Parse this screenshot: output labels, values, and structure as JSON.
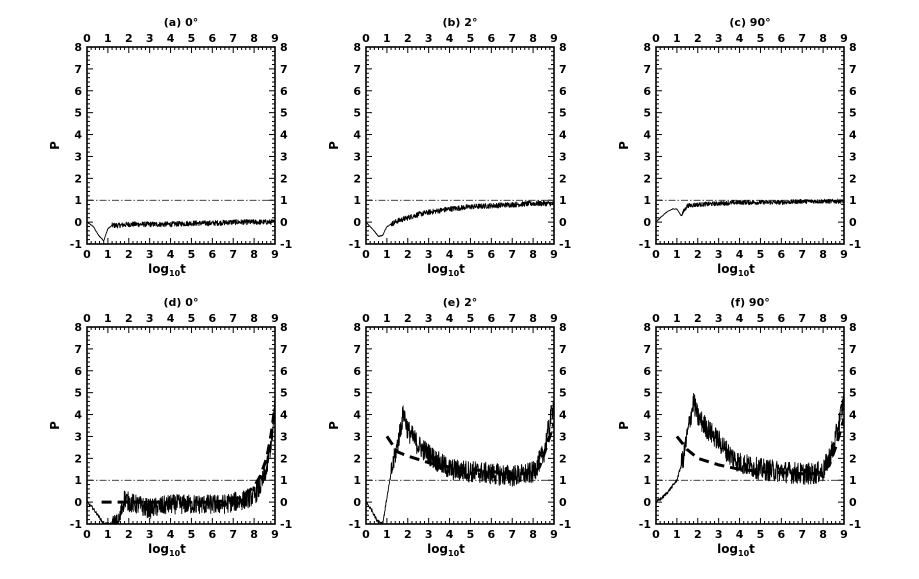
{
  "chart_data": [
    {
      "type": "line",
      "title": "(a) 0°",
      "xlabel": "log10t",
      "ylabel": "P",
      "xlim": [
        0,
        9
      ],
      "ylim": [
        -1,
        8
      ],
      "xticks": [
        "0",
        "1",
        "2",
        "3",
        "4",
        "5",
        "6",
        "7",
        "8",
        "9"
      ],
      "yticks": [
        "-1",
        "0",
        "1",
        "2",
        "3",
        "4",
        "5",
        "6",
        "7",
        "8"
      ],
      "reference_line": 1,
      "series": [
        {
          "style": "solid",
          "x": [
            0,
            0.3,
            0.55,
            0.8,
            1.0,
            1.2,
            1.5,
            2,
            3,
            4,
            5,
            6,
            7,
            8,
            9
          ],
          "y": [
            0,
            -0.2,
            -0.6,
            -0.85,
            -0.3,
            -0.15,
            -0.15,
            -0.1,
            -0.1,
            -0.1,
            -0.05,
            -0.05,
            0,
            0,
            0
          ]
        }
      ]
    },
    {
      "type": "line",
      "title": "(b) 2°",
      "xlabel": "log10t",
      "ylabel": "P",
      "xlim": [
        0,
        9
      ],
      "ylim": [
        -1,
        8
      ],
      "xticks": [
        "0",
        "1",
        "2",
        "3",
        "4",
        "5",
        "6",
        "7",
        "8",
        "9"
      ],
      "yticks": [
        "-1",
        "0",
        "1",
        "2",
        "3",
        "4",
        "5",
        "6",
        "7",
        "8"
      ],
      "reference_line": 1,
      "series": [
        {
          "style": "solid",
          "x": [
            0,
            0.3,
            0.6,
            0.8,
            1.0,
            1.2,
            1.5,
            2,
            2.5,
            3,
            4,
            5,
            6,
            7,
            8,
            9
          ],
          "y": [
            0,
            -0.3,
            -0.65,
            -0.6,
            -0.2,
            -0.1,
            0.05,
            0.2,
            0.35,
            0.45,
            0.6,
            0.7,
            0.75,
            0.8,
            0.85,
            0.85
          ]
        }
      ]
    },
    {
      "type": "line",
      "title": "(c) 90°",
      "xlabel": "log10t",
      "ylabel": "P",
      "xlim": [
        0,
        9
      ],
      "ylim": [
        -1,
        8
      ],
      "xticks": [
        "0",
        "1",
        "2",
        "3",
        "4",
        "5",
        "6",
        "7",
        "8",
        "9"
      ],
      "yticks": [
        "-1",
        "0",
        "1",
        "2",
        "3",
        "4",
        "5",
        "6",
        "7",
        "8"
      ],
      "reference_line": 1,
      "series": [
        {
          "style": "solid",
          "x": [
            0,
            0.2,
            0.5,
            0.8,
            1.0,
            1.2,
            1.5,
            2,
            3,
            4,
            5,
            6,
            7,
            8,
            9
          ],
          "y": [
            0,
            0.2,
            0.45,
            0.6,
            0.6,
            0.3,
            0.75,
            0.8,
            0.85,
            0.9,
            0.9,
            0.9,
            0.95,
            0.95,
            0.95
          ]
        }
      ]
    },
    {
      "type": "line",
      "title": "(d) 0°",
      "xlabel": "log10t",
      "ylabel": "P",
      "xlim": [
        0,
        9
      ],
      "ylim": [
        -1,
        8
      ],
      "xticks": [
        "0",
        "1",
        "2",
        "3",
        "4",
        "5",
        "6",
        "7",
        "8",
        "9"
      ],
      "yticks": [
        "-1",
        "0",
        "1",
        "2",
        "3",
        "4",
        "5",
        "6",
        "7",
        "8"
      ],
      "reference_line": 1,
      "series": [
        {
          "style": "solid",
          "x": [
            0,
            0.3,
            0.6,
            0.8,
            1.0,
            1.5,
            1.8,
            2,
            3,
            4,
            5,
            6,
            6.5,
            7,
            7.5,
            8,
            8.3,
            8.6,
            8.9,
            9
          ],
          "y": [
            0,
            -0.3,
            -0.7,
            -1,
            -1,
            -1,
            0.2,
            0,
            -0.3,
            -0.1,
            -0.1,
            -0.1,
            -0.1,
            0,
            0.1,
            0.3,
            0.7,
            1.5,
            3.2,
            4.6
          ]
        },
        {
          "style": "dashed",
          "x": [
            0.7,
            1.2,
            2,
            3,
            4,
            5,
            6,
            7,
            7.5,
            8,
            8.3,
            8.6,
            8.8,
            9
          ],
          "y": [
            0,
            0,
            0,
            0,
            0,
            0,
            0,
            0.1,
            0.3,
            0.7,
            1.2,
            2,
            3,
            4.4
          ]
        }
      ]
    },
    {
      "type": "line",
      "title": "(e) 2°",
      "xlabel": "log10t",
      "ylabel": "P",
      "xlim": [
        0,
        9
      ],
      "ylim": [
        -1,
        8
      ],
      "xticks": [
        "0",
        "1",
        "2",
        "3",
        "4",
        "5",
        "6",
        "7",
        "8",
        "9"
      ],
      "yticks": [
        "-1",
        "0",
        "1",
        "2",
        "3",
        "4",
        "5",
        "6",
        "7",
        "8"
      ],
      "reference_line": 1,
      "series": [
        {
          "style": "solid",
          "x": [
            0,
            0.3,
            0.5,
            0.8,
            1.0,
            1.2,
            1.5,
            1.8,
            2,
            2.5,
            3,
            3.5,
            4,
            5,
            6,
            7,
            7.5,
            8,
            8.5,
            9
          ],
          "y": [
            0,
            -0.4,
            -0.8,
            -1,
            0.2,
            1.3,
            2.6,
            4.1,
            3.3,
            2.6,
            2.2,
            1.8,
            1.5,
            1.4,
            1.3,
            1.2,
            1.25,
            1.35,
            2.2,
            4.6
          ]
        },
        {
          "style": "dashed",
          "x": [
            1,
            1.5,
            2,
            3,
            4,
            5,
            6,
            7,
            7.5,
            8,
            8.3,
            8.6,
            9
          ],
          "y": [
            3,
            2.3,
            2.1,
            1.8,
            1.6,
            1.5,
            1.4,
            1.3,
            1.3,
            1.35,
            1.6,
            2.4,
            3.6
          ]
        }
      ]
    },
    {
      "type": "line",
      "title": "(f) 90°",
      "xlabel": "log10t",
      "ylabel": "P",
      "xlim": [
        0,
        9
      ],
      "ylim": [
        -1,
        8
      ],
      "xticks": [
        "0",
        "1",
        "2",
        "3",
        "4",
        "5",
        "6",
        "7",
        "8",
        "9"
      ],
      "yticks": [
        "-1",
        "0",
        "1",
        "2",
        "3",
        "4",
        "5",
        "6",
        "7",
        "8"
      ],
      "reference_line": 1,
      "series": [
        {
          "style": "solid",
          "x": [
            0,
            0.3,
            0.6,
            1.0,
            1.3,
            1.6,
            1.8,
            2,
            2.5,
            3,
            3.5,
            4,
            5,
            6,
            7,
            7.5,
            8,
            8.5,
            9
          ],
          "y": [
            0,
            0.2,
            0.5,
            1,
            2,
            3.6,
            4.6,
            3.9,
            3.3,
            2.8,
            2.2,
            1.8,
            1.5,
            1.4,
            1.3,
            1.3,
            1.4,
            2.5,
            4.7
          ]
        },
        {
          "style": "dashed",
          "x": [
            1,
            1.5,
            2,
            3,
            4,
            5,
            6,
            7,
            7.5,
            8,
            8.3,
            8.6,
            9
          ],
          "y": [
            3,
            2.4,
            2,
            1.7,
            1.5,
            1.4,
            1.35,
            1.3,
            1.3,
            1.4,
            1.7,
            2.5,
            3.8
          ]
        }
      ]
    }
  ]
}
